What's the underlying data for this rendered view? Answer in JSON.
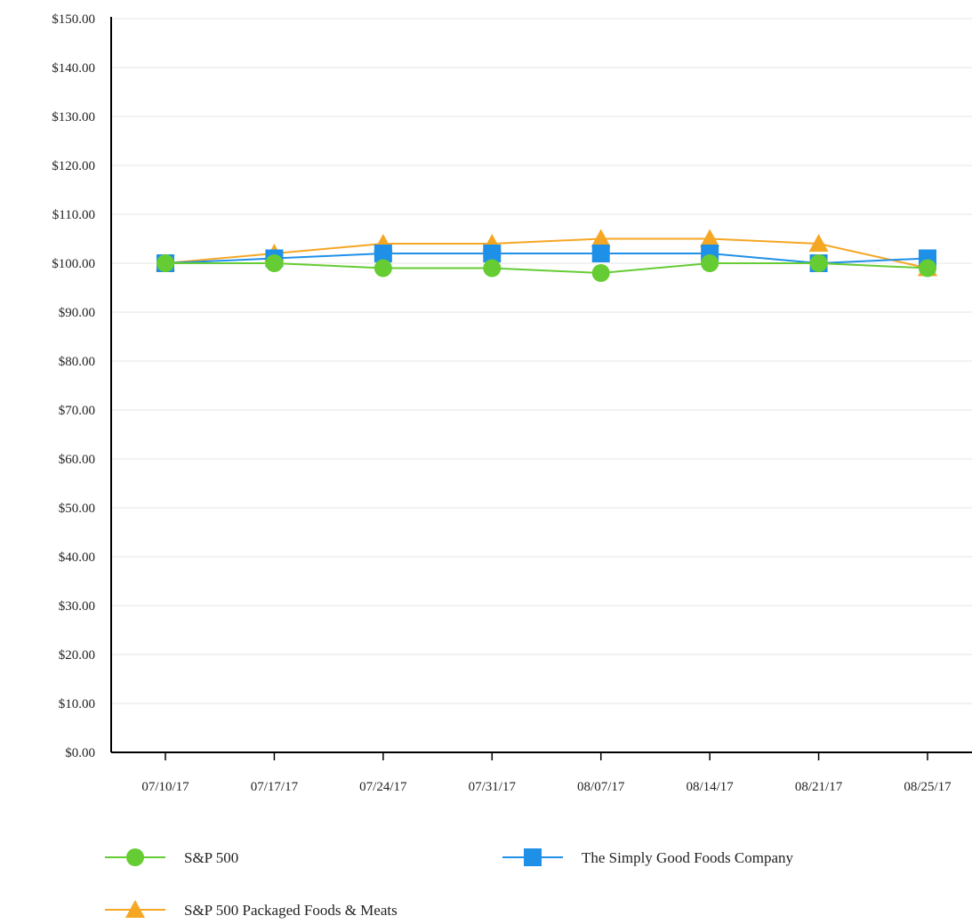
{
  "chart_data": {
    "type": "line",
    "title": "",
    "xlabel": "",
    "ylabel": "",
    "categories": [
      "07/10/17",
      "07/17/17",
      "07/24/17",
      "07/31/17",
      "08/07/17",
      "08/14/17",
      "08/21/17",
      "08/25/17"
    ],
    "ylim": [
      0,
      150
    ],
    "yticks": [
      0,
      10,
      20,
      30,
      40,
      50,
      60,
      70,
      80,
      90,
      100,
      110,
      120,
      130,
      140,
      150
    ],
    "ytick_labels": [
      "$0.00",
      "$10.00",
      "$20.00",
      "$30.00",
      "$40.00",
      "$50.00",
      "$60.00",
      "$70.00",
      "$80.00",
      "$90.00",
      "$100.00",
      "$110.00",
      "$120.00",
      "$130.00",
      "$140.00",
      "$150.00"
    ],
    "grid": true,
    "legend_position": "bottom",
    "series": [
      {
        "name": "S&P 500",
        "color": "#66cc33",
        "marker": "circle",
        "values": [
          100,
          100,
          99,
          99,
          98,
          100,
          100,
          99
        ]
      },
      {
        "name": "The Simply Good Foods Company",
        "color": "#1e90e8",
        "marker": "square",
        "values": [
          100,
          101,
          102,
          102,
          102,
          102,
          100,
          101
        ]
      },
      {
        "name": "S&P 500 Packaged Foods & Meats",
        "color": "#f5a623",
        "marker": "triangle",
        "values": [
          100,
          102,
          104,
          104,
          105,
          105,
          104,
          99
        ]
      }
    ]
  }
}
